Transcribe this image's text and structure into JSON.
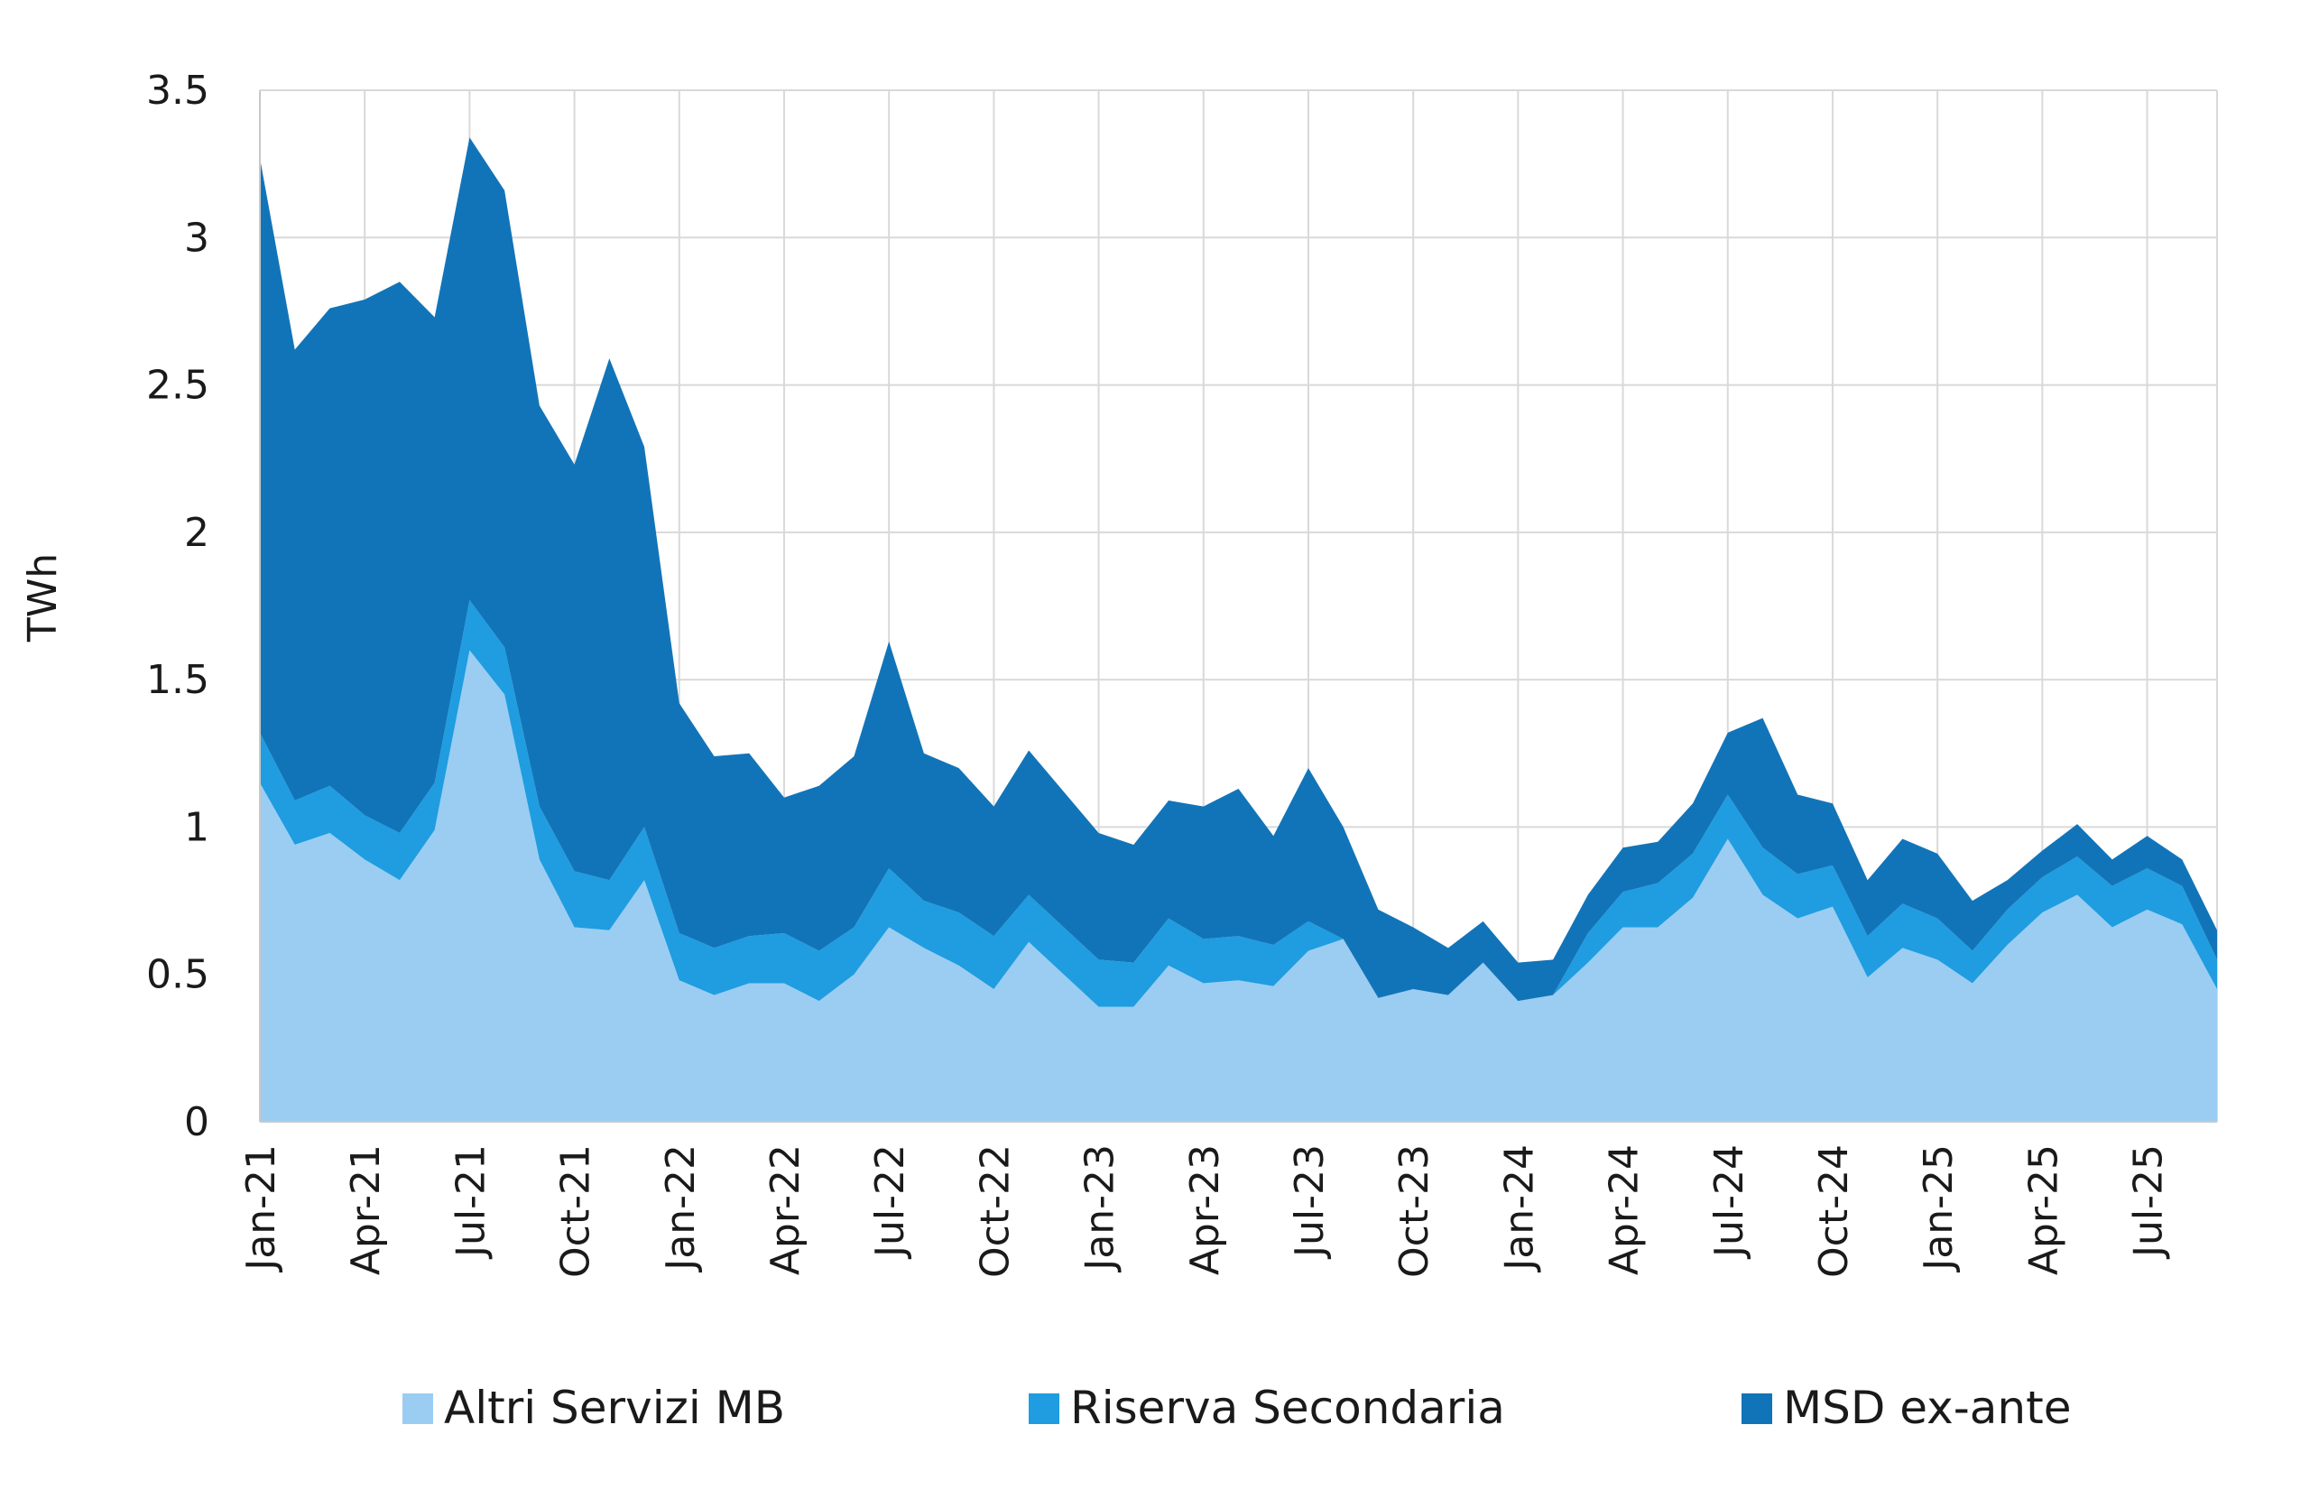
{
  "chart_data": {
    "type": "area",
    "stacked": true,
    "xlabel": "",
    "ylabel": "TWh",
    "ylim": [
      0,
      3.5
    ],
    "yticks": [
      "0",
      "0.5",
      "1",
      "1.5",
      "2",
      "2.5",
      "3",
      "3.5"
    ],
    "grid": true,
    "legend_position": "bottom",
    "x": [
      "Jan-21",
      "Feb-21",
      "Mar-21",
      "Apr-21",
      "May-21",
      "Jun-21",
      "Jul-21",
      "Aug-21",
      "Sep-21",
      "Oct-21",
      "Nov-21",
      "Dec-21",
      "Jan-22",
      "Feb-22",
      "Mar-22",
      "Apr-22",
      "May-22",
      "Jun-22",
      "Jul-22",
      "Aug-22",
      "Sep-22",
      "Oct-22",
      "Nov-22",
      "Dec-22",
      "Jan-23",
      "Feb-23",
      "Mar-23",
      "Apr-23",
      "May-23",
      "Jun-23",
      "Jul-23",
      "Aug-23",
      "Sep-23",
      "Oct-23",
      "Nov-23",
      "Dec-23",
      "Jan-24",
      "Feb-24",
      "Mar-24",
      "Apr-24",
      "May-24",
      "Jun-24",
      "Jul-24",
      "Aug-24",
      "Sep-24",
      "Oct-24",
      "Nov-24",
      "Dec-24",
      "Jan-25",
      "Feb-25",
      "Mar-25",
      "Apr-25",
      "May-25",
      "Jun-25",
      "Jul-25",
      "Aug-25",
      "Sep-25"
    ],
    "xtick_labels": [
      "Jan-21",
      "Apr-21",
      "Jul-21",
      "Oct-21",
      "Jan-22",
      "Apr-22",
      "Jul-22",
      "Oct-22",
      "Jan-23",
      "Apr-23",
      "Jul-23",
      "Oct-23",
      "Jan-24",
      "Apr-24",
      "Jul-24",
      "Oct-24",
      "Jan-25",
      "Apr-25",
      "Jul-25"
    ],
    "series": [
      {
        "name": "Altri Servizi MB",
        "color": "#9bcdf2",
        "values": [
          1.15,
          0.94,
          0.98,
          0.89,
          0.82,
          0.99,
          1.6,
          1.45,
          0.89,
          0.66,
          0.65,
          0.82,
          0.48,
          0.43,
          0.47,
          0.47,
          0.41,
          0.5,
          0.66,
          0.59,
          0.53,
          0.45,
          0.61,
          0.5,
          0.39,
          0.39,
          0.53,
          0.47,
          0.48,
          0.46,
          0.58,
          0.62,
          0.42,
          0.45,
          0.43,
          0.54,
          0.41,
          0.43,
          0.54,
          0.66,
          0.66,
          0.76,
          0.96,
          0.77,
          0.69,
          0.73,
          0.49,
          0.59,
          0.55,
          0.47,
          0.6,
          0.71,
          0.77,
          0.66,
          0.72,
          0.67,
          0.45
        ]
      },
      {
        "name": "Riserva Secondaria",
        "color": "#1f9de0",
        "values": [
          0.17,
          0.15,
          0.16,
          0.15,
          0.16,
          0.16,
          0.17,
          0.16,
          0.18,
          0.19,
          0.17,
          0.18,
          0.16,
          0.16,
          0.16,
          0.17,
          0.17,
          0.16,
          0.2,
          0.16,
          0.18,
          0.18,
          0.16,
          0.16,
          0.16,
          0.15,
          0.16,
          0.15,
          0.15,
          0.14,
          0.1,
          0.0,
          0.0,
          0.0,
          0.0,
          0.0,
          0.0,
          0.0,
          0.1,
          0.12,
          0.15,
          0.15,
          0.15,
          0.16,
          0.15,
          0.14,
          0.14,
          0.15,
          0.14,
          0.11,
          0.12,
          0.12,
          0.13,
          0.14,
          0.14,
          0.13,
          0.1
        ]
      },
      {
        "name": "MSD ex-ante",
        "color": "#1274b8",
        "values": [
          1.95,
          1.53,
          1.62,
          1.75,
          1.87,
          1.58,
          1.57,
          1.55,
          1.36,
          1.38,
          1.77,
          1.29,
          0.78,
          0.65,
          0.62,
          0.46,
          0.56,
          0.58,
          0.77,
          0.5,
          0.49,
          0.44,
          0.49,
          0.46,
          0.43,
          0.4,
          0.4,
          0.45,
          0.5,
          0.37,
          0.52,
          0.38,
          0.3,
          0.21,
          0.16,
          0.14,
          0.13,
          0.12,
          0.13,
          0.15,
          0.14,
          0.17,
          0.21,
          0.44,
          0.27,
          0.21,
          0.19,
          0.22,
          0.22,
          0.17,
          0.1,
          0.09,
          0.11,
          0.09,
          0.11,
          0.09,
          0.1
        ]
      }
    ]
  }
}
